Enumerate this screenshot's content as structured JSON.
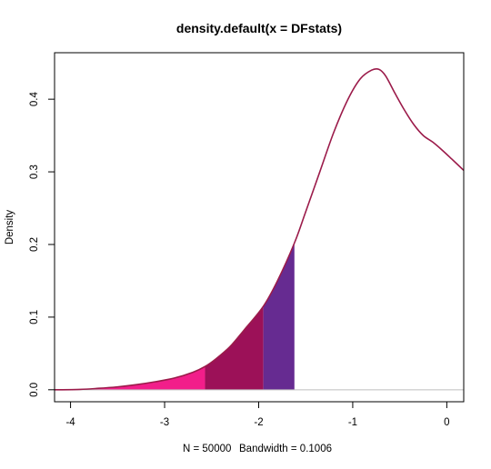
{
  "chart_data": {
    "type": "area",
    "title": "density.default(x = DFstats)",
    "subtitle_n": "N = 50000",
    "subtitle_bw": "Bandwidth = 0.1006",
    "ylabel": "Density",
    "xlim": [
      -4.17,
      0.18
    ],
    "ylim": [
      -0.0165,
      0.464
    ],
    "x_ticks": [
      -4,
      -3,
      -2,
      -1,
      0
    ],
    "x_tick_labels": [
      "-4",
      "-3",
      "-2",
      "-1",
      "0"
    ],
    "y_ticks": [
      0.0,
      0.1,
      0.2,
      0.3,
      0.4
    ],
    "y_tick_labels": [
      "0.0",
      "0.1",
      "0.2",
      "0.3",
      "0.4"
    ],
    "curve_color": "#9b1b4a",
    "baseline_color": "#bebebe",
    "x": [
      -4.17,
      -3.9,
      -3.7,
      -3.5,
      -3.3,
      -3.1,
      -2.9,
      -2.7,
      -2.57,
      -2.45,
      -2.3,
      -2.15,
      -1.95,
      -1.8,
      -1.62,
      -1.5,
      -1.35,
      -1.2,
      -1.05,
      -0.92,
      -0.8,
      -0.72,
      -0.65,
      -0.55,
      -0.45,
      -0.35,
      -0.25,
      -0.15,
      -0.05,
      0.05,
      0.18
    ],
    "y": [
      0.0,
      0.0005,
      0.002,
      0.004,
      0.007,
      0.011,
      0.016,
      0.024,
      0.032,
      0.043,
      0.06,
      0.083,
      0.115,
      0.15,
      0.202,
      0.245,
      0.3,
      0.355,
      0.4,
      0.428,
      0.44,
      0.441,
      0.432,
      0.408,
      0.385,
      0.365,
      0.35,
      0.341,
      0.33,
      0.318,
      0.302
    ],
    "shaded_regions": [
      {
        "from": -4.17,
        "to": -2.57,
        "color": "#f21e8a"
      },
      {
        "from": -2.57,
        "to": -1.95,
        "color": "#9c1158"
      },
      {
        "from": -1.95,
        "to": -1.62,
        "color": "#662b91"
      }
    ]
  }
}
